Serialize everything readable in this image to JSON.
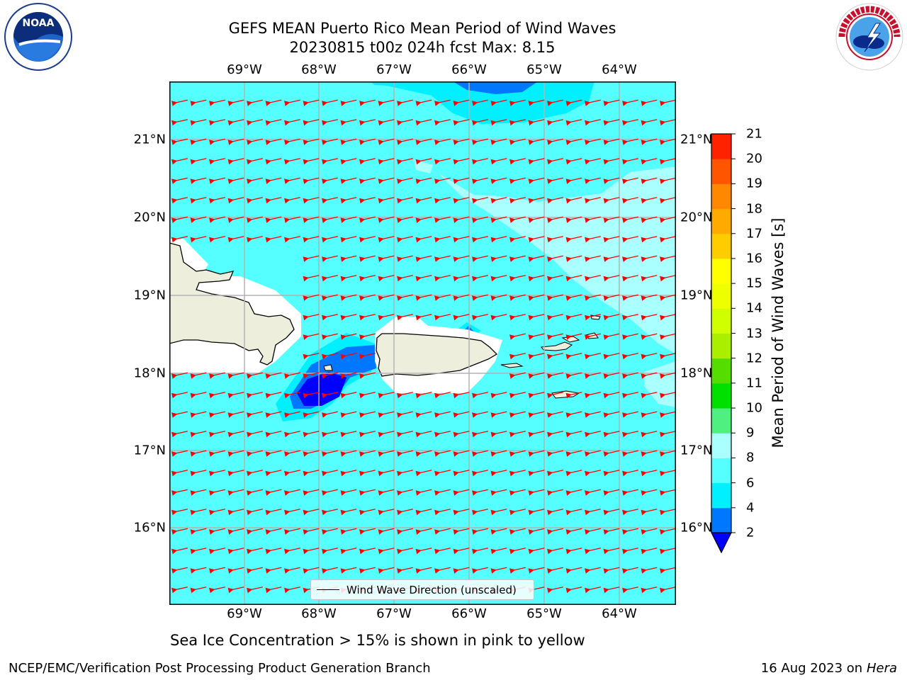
{
  "title_line1": "GEFS MEAN Puerto Rico Mean Period of Wind Waves",
  "title_line2": "20230815 t00z 024h fcst   Max: 8.15",
  "lon_labels": [
    "69°W",
    "68°W",
    "67°W",
    "66°W",
    "65°W",
    "64°W"
  ],
  "lat_labels": [
    "21°N",
    "20°N",
    "19°N",
    "18°N",
    "17°N",
    "16°N"
  ],
  "colorbar": {
    "label": "Mean Period of Wind Waves [s]",
    "ticks": [
      "2",
      "4",
      "6",
      "8",
      "9",
      "10",
      "11",
      "12",
      "13",
      "14",
      "15",
      "16",
      "17",
      "18",
      "19",
      "20",
      "21"
    ],
    "colors": [
      "#0000ff",
      "#0077ff",
      "#00f0ff",
      "#55ffff",
      "#aaffff",
      "#50f080",
      "#00e000",
      "#55dd00",
      "#aaee00",
      "#d0ff00",
      "#eeff00",
      "#ffff00",
      "#ffcc00",
      "#ffaa00",
      "#ff8800",
      "#ff5500",
      "#ff2200",
      "#ff0000"
    ]
  },
  "legend_label": "Wind Wave Direction (unscaled)",
  "footer_note": "Sea Ice Concentration > 15% is shown in pink to yellow",
  "credit": "NCEP/EMC/Verification Post Processing Product Generation Branch",
  "stamp_date": "16 Aug 2023 on",
  "stamp_host": "Hera",
  "logos": {
    "left": "noaa-logo",
    "right": "nws-logo"
  },
  "colors": {
    "ocean": "#55ffff",
    "land": "#eeeedd",
    "arrow": "#ff0000",
    "deep": "#0000ff"
  }
}
